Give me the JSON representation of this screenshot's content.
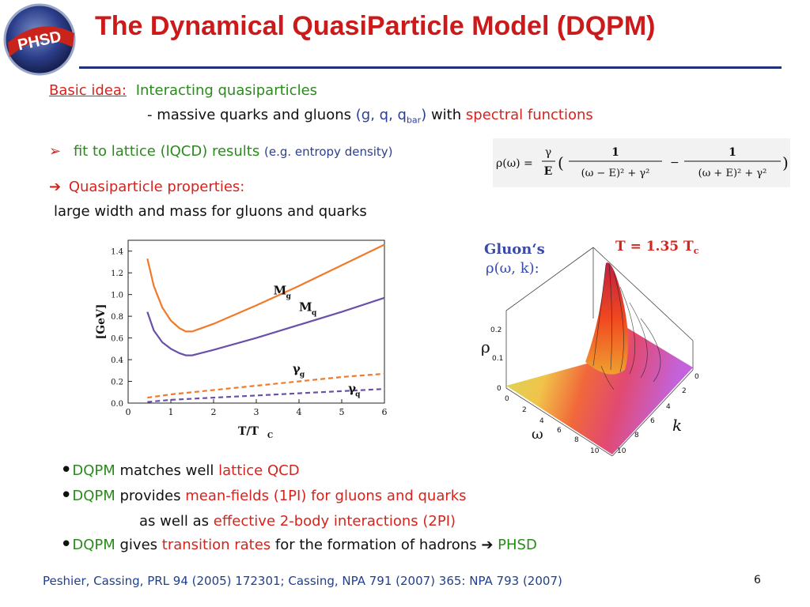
{
  "logo_text": "PHSD",
  "title": "The Dynamical QuasiParticle Model (DQPM)",
  "basic_idea": {
    "label": "Basic idea:",
    "text": "Interacting quasiparticles",
    "sub_dash": "-",
    "sub_text": "massive quarks and gluons",
    "sub_paren_open": "(g, q, q",
    "sub_bar": "bar",
    "sub_paren_close": ")",
    "sub_with": "with",
    "sub_spectral": "spectral functions"
  },
  "fit": {
    "marker": "➢",
    "text": "fit to lattice (lQCD) results",
    "paren": "(e.g. entropy density)"
  },
  "formula": {
    "lhs": "ρ(ω) =",
    "gamma": "γ",
    "E": "E",
    "open": "(",
    "one": "1",
    "den1": "(ω − E)² + γ²",
    "minus": "−",
    "den2": "(ω + E)² + γ²",
    "close": ")"
  },
  "quasi": {
    "arrow": "➔",
    "label": "Quasiparticle properties:",
    "text": "large width and mass for gluons and quarks"
  },
  "chart_data": {
    "type": "line",
    "xlabel": "T/T",
    "xlabel_sub": "C",
    "ylabel": "[GeV]",
    "xlim": [
      0,
      6
    ],
    "ylim": [
      0,
      1.5
    ],
    "x_ticks": [
      "0",
      "1",
      "2",
      "3",
      "4",
      "5",
      "6"
    ],
    "y_ticks": [
      "0.0",
      "0.2",
      "0.4",
      "0.6",
      "0.8",
      "1.0",
      "1.2",
      "1.4"
    ],
    "series": [
      {
        "name": "M",
        "sub": "g",
        "color": "#f07a2a",
        "dashed": false,
        "x": [
          0.45,
          0.6,
          0.8,
          1.0,
          1.2,
          1.35,
          1.5,
          2.0,
          3.0,
          4.0,
          5.0,
          6.0
        ],
        "y": [
          1.33,
          1.08,
          0.88,
          0.76,
          0.69,
          0.66,
          0.66,
          0.73,
          0.9,
          1.08,
          1.27,
          1.46
        ]
      },
      {
        "name": "M",
        "sub": "q",
        "color": "#6a50a8",
        "dashed": false,
        "x": [
          0.45,
          0.6,
          0.8,
          1.0,
          1.2,
          1.35,
          1.5,
          2.0,
          3.0,
          4.0,
          5.0,
          6.0
        ],
        "y": [
          0.84,
          0.67,
          0.56,
          0.5,
          0.46,
          0.44,
          0.44,
          0.49,
          0.6,
          0.72,
          0.84,
          0.97
        ]
      },
      {
        "name": "γ",
        "sub": "g",
        "color": "#f07a2a",
        "dashed": true,
        "x": [
          0.45,
          1.0,
          2.0,
          3.0,
          4.0,
          5.0,
          6.0
        ],
        "y": [
          0.05,
          0.08,
          0.12,
          0.16,
          0.2,
          0.24,
          0.27
        ]
      },
      {
        "name": "γ",
        "sub": "q",
        "color": "#6a50a8",
        "dashed": true,
        "x": [
          0.45,
          1.0,
          2.0,
          3.0,
          4.0,
          5.0,
          6.0
        ],
        "y": [
          0.01,
          0.03,
          0.05,
          0.07,
          0.09,
          0.11,
          0.13
        ]
      }
    ]
  },
  "surface": {
    "gluon_label": "Gluon‘s",
    "rho_label": "ρ(ω, k):",
    "temp_label": "T = 1.35 T",
    "temp_sub": "c",
    "z_axis": "ρ",
    "z_ticks": [
      "0.2",
      "0.1",
      "0"
    ],
    "omega_axis": "ω",
    "omega_ticks": [
      "0",
      "2",
      "4",
      "6",
      "8",
      "10"
    ],
    "k_axis": "k",
    "k_ticks": [
      "0",
      "2",
      "4",
      "6",
      "8",
      "10"
    ]
  },
  "bullets": [
    {
      "dot": "•",
      "a": "DQPM",
      "b": "matches well",
      "c": "lattice QCD"
    },
    {
      "dot": "•",
      "a": "DQPM",
      "b": "provides",
      "c": "mean-fields (1PI) for gluons and quarks"
    },
    {
      "b": "as well as",
      "c": "effective 2-body interactions (2PI)"
    },
    {
      "dot": "•",
      "a": "DQPM",
      "b": "gives",
      "c": "transition rates",
      "d": "for the formation of hadrons",
      "arrow": "➔",
      "e": "PHSD"
    }
  ],
  "footer": "Peshier, Cassing, PRL 94 (2005) 172301;    Cassing,  NPA 791 (2007) 365: NPA 793 (2007)",
  "page_number": "6",
  "colors": {
    "title": "#cc1a1a",
    "rule": "#1f2f78",
    "green": "#2a8a1c",
    "red": "#d6231d",
    "blue": "#2b3f91"
  }
}
